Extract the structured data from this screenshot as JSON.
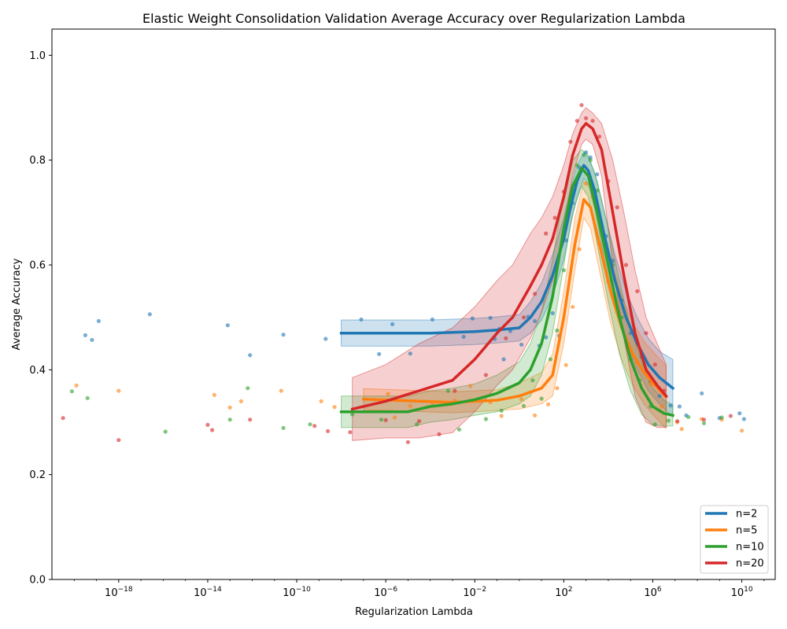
{
  "chart_data": {
    "type": "line",
    "title": "Elastic Weight Consolidation Validation Average Accuracy over Regularization Lambda",
    "xlabel": "Regularization Lambda",
    "ylabel": "Average Accuracy",
    "xscale": "log",
    "xlim_log10": [
      -21,
      11.5
    ],
    "ylim": [
      0.0,
      1.05
    ],
    "x_ticks": [
      {
        "exp": -18,
        "label": "10",
        "sup": "−18"
      },
      {
        "exp": -14,
        "label": "10",
        "sup": "−14"
      },
      {
        "exp": -10,
        "label": "10",
        "sup": "−10"
      },
      {
        "exp": -6,
        "label": "10",
        "sup": "−6"
      },
      {
        "exp": -2,
        "label": "10",
        "sup": "−2"
      },
      {
        "exp": 2,
        "label": "10",
        "sup": "2"
      },
      {
        "exp": 6,
        "label": "10",
        "sup": "6"
      },
      {
        "exp": 10,
        "label": "10",
        "sup": "10"
      }
    ],
    "y_ticks": [
      "0.0",
      "0.2",
      "0.4",
      "0.6",
      "0.8",
      "1.0"
    ],
    "legend_position": "bottom-right",
    "series": [
      {
        "name": "n=2",
        "color": "#1f77b4",
        "x_log10": [
          -8.0,
          -6.0,
          -4.0,
          -2.0,
          -1.0,
          0.0,
          0.5,
          1.0,
          1.5,
          2.0,
          2.3,
          2.6,
          2.9,
          3.1,
          3.4,
          3.8,
          4.3,
          4.8,
          5.3,
          5.8,
          6.3,
          6.9
        ],
        "mean": [
          0.47,
          0.47,
          0.47,
          0.473,
          0.476,
          0.48,
          0.5,
          0.53,
          0.58,
          0.65,
          0.71,
          0.76,
          0.79,
          0.78,
          0.74,
          0.66,
          0.57,
          0.5,
          0.45,
          0.41,
          0.385,
          0.365
        ],
        "halfwidth": [
          0.025,
          0.025,
          0.025,
          0.025,
          0.025,
          0.025,
          0.03,
          0.035,
          0.04,
          0.04,
          0.035,
          0.03,
          0.025,
          0.025,
          0.035,
          0.045,
          0.05,
          0.05,
          0.05,
          0.05,
          0.05,
          0.055
        ],
        "scatter": [
          [
            -19.5,
            0.466
          ],
          [
            -19.2,
            0.457
          ],
          [
            -18.9,
            0.493
          ],
          [
            -16.6,
            0.506
          ],
          [
            -13.1,
            0.485
          ],
          [
            -12.1,
            0.428
          ],
          [
            -10.6,
            0.467
          ],
          [
            -8.7,
            0.459
          ],
          [
            -7.1,
            0.496
          ],
          [
            -6.3,
            0.43
          ],
          [
            -5.7,
            0.487
          ],
          [
            -4.9,
            0.431
          ],
          [
            -3.9,
            0.496
          ],
          [
            -2.5,
            0.463
          ],
          [
            -2.1,
            0.498
          ],
          [
            -1.3,
            0.499
          ],
          [
            -1.1,
            0.459
          ],
          [
            -0.9,
            0.478
          ],
          [
            -0.7,
            0.42
          ],
          [
            -0.4,
            0.474
          ],
          [
            0.1,
            0.448
          ],
          [
            0.4,
            0.501
          ],
          [
            0.7,
            0.493
          ],
          [
            0.9,
            0.446
          ],
          [
            1.2,
            0.462
          ],
          [
            1.5,
            0.508
          ],
          [
            1.8,
            0.465
          ],
          [
            2.1,
            0.647
          ],
          [
            2.4,
            0.718
          ],
          [
            2.7,
            0.786
          ],
          [
            3.0,
            0.815
          ],
          [
            3.2,
            0.805
          ],
          [
            3.5,
            0.773
          ],
          [
            3.9,
            0.655
          ],
          [
            4.2,
            0.608
          ],
          [
            4.6,
            0.532
          ],
          [
            5.0,
            0.47
          ],
          [
            5.5,
            0.425
          ],
          [
            5.9,
            0.378
          ],
          [
            6.3,
            0.35
          ],
          [
            6.8,
            0.332
          ],
          [
            7.2,
            0.33
          ],
          [
            7.5,
            0.313
          ],
          [
            8.2,
            0.355
          ],
          [
            9.0,
            0.308
          ],
          [
            9.9,
            0.317
          ],
          [
            10.1,
            0.306
          ]
        ]
      },
      {
        "name": "n=5",
        "color": "#ff7f0e",
        "x_log10": [
          -7.0,
          -5.0,
          -3.0,
          -1.0,
          0.0,
          1.0,
          1.5,
          2.0,
          2.5,
          2.9,
          3.2,
          3.6,
          4.1,
          4.6,
          5.1,
          5.6,
          6.1,
          6.6
        ],
        "mean": [
          0.344,
          0.341,
          0.338,
          0.342,
          0.35,
          0.365,
          0.39,
          0.5,
          0.64,
          0.725,
          0.71,
          0.64,
          0.55,
          0.48,
          0.43,
          0.395,
          0.37,
          0.348
        ],
        "halfwidth": [
          0.02,
          0.02,
          0.02,
          0.02,
          0.025,
          0.03,
          0.04,
          0.05,
          0.05,
          0.035,
          0.04,
          0.05,
          0.06,
          0.06,
          0.06,
          0.06,
          0.06,
          0.06
        ],
        "scatter": [
          [
            -19.9,
            0.37
          ],
          [
            -18.0,
            0.36
          ],
          [
            -13.7,
            0.352
          ],
          [
            -13.0,
            0.328
          ],
          [
            -12.5,
            0.34
          ],
          [
            -10.7,
            0.36
          ],
          [
            -8.9,
            0.34
          ],
          [
            -8.3,
            0.329
          ],
          [
            -5.9,
            0.354
          ],
          [
            -5.6,
            0.309
          ],
          [
            -4.9,
            0.331
          ],
          [
            -3.9,
            0.337
          ],
          [
            -2.9,
            0.341
          ],
          [
            -2.2,
            0.369
          ],
          [
            -1.3,
            0.338
          ],
          [
            -0.8,
            0.312
          ],
          [
            0.1,
            0.344
          ],
          [
            0.7,
            0.313
          ],
          [
            1.3,
            0.334
          ],
          [
            1.7,
            0.365
          ],
          [
            2.1,
            0.409
          ],
          [
            2.4,
            0.52
          ],
          [
            2.7,
            0.63
          ],
          [
            3.0,
            0.755
          ],
          [
            3.3,
            0.73
          ],
          [
            3.6,
            0.64
          ],
          [
            4.0,
            0.568
          ],
          [
            4.4,
            0.51
          ],
          [
            4.8,
            0.455
          ],
          [
            5.3,
            0.414
          ],
          [
            5.9,
            0.373
          ],
          [
            6.4,
            0.33
          ],
          [
            7.1,
            0.3
          ],
          [
            7.3,
            0.287
          ],
          [
            8.2,
            0.306
          ],
          [
            9.1,
            0.305
          ],
          [
            10.0,
            0.284
          ]
        ]
      },
      {
        "name": "n=10",
        "color": "#2ca02c",
        "x_log10": [
          -8.0,
          -6.0,
          -5.0,
          -4.0,
          -3.0,
          -2.0,
          -1.0,
          0.0,
          0.5,
          1.0,
          1.5,
          2.0,
          2.4,
          2.8,
          3.1,
          3.5,
          4.0,
          4.5,
          5.0,
          5.5,
          6.0,
          6.5,
          6.9
        ],
        "mean": [
          0.32,
          0.32,
          0.32,
          0.33,
          0.335,
          0.343,
          0.355,
          0.375,
          0.4,
          0.45,
          0.54,
          0.67,
          0.75,
          0.785,
          0.77,
          0.7,
          0.6,
          0.5,
          0.42,
          0.365,
          0.33,
          0.317,
          0.313
        ],
        "halfwidth": [
          0.03,
          0.03,
          0.03,
          0.03,
          0.03,
          0.03,
          0.035,
          0.04,
          0.05,
          0.06,
          0.07,
          0.07,
          0.05,
          0.035,
          0.04,
          0.06,
          0.07,
          0.07,
          0.06,
          0.05,
          0.035,
          0.025,
          0.02
        ],
        "scatter": [
          [
            -20.1,
            0.359
          ],
          [
            -19.4,
            0.346
          ],
          [
            -15.9,
            0.282
          ],
          [
            -12.2,
            0.365
          ],
          [
            -13.0,
            0.305
          ],
          [
            -10.6,
            0.289
          ],
          [
            -9.4,
            0.296
          ],
          [
            -7.5,
            0.315
          ],
          [
            -6.2,
            0.305
          ],
          [
            -4.6,
            0.296
          ],
          [
            -3.2,
            0.36
          ],
          [
            -2.7,
            0.286
          ],
          [
            -1.5,
            0.306
          ],
          [
            -0.8,
            0.322
          ],
          [
            0.2,
            0.331
          ],
          [
            0.6,
            0.38
          ],
          [
            1.0,
            0.345
          ],
          [
            1.4,
            0.42
          ],
          [
            1.7,
            0.475
          ],
          [
            2.0,
            0.59
          ],
          [
            2.3,
            0.71
          ],
          [
            2.6,
            0.79
          ],
          [
            2.9,
            0.81
          ],
          [
            3.2,
            0.8
          ],
          [
            3.5,
            0.742
          ],
          [
            3.9,
            0.64
          ],
          [
            4.2,
            0.6
          ],
          [
            4.6,
            0.5
          ],
          [
            5.0,
            0.42
          ],
          [
            5.4,
            0.38
          ],
          [
            5.9,
            0.33
          ],
          [
            6.1,
            0.296
          ],
          [
            6.7,
            0.303
          ],
          [
            7.6,
            0.31
          ],
          [
            8.3,
            0.298
          ],
          [
            9.1,
            0.309
          ]
        ]
      },
      {
        "name": "n=20",
        "color": "#d62728",
        "x_log10": [
          -7.5,
          -6.0,
          -4.5,
          -3.0,
          -2.0,
          -1.0,
          -0.3,
          0.5,
          1.0,
          1.5,
          2.0,
          2.4,
          2.8,
          3.0,
          3.3,
          3.7,
          4.2,
          4.7,
          5.2,
          5.7,
          6.2,
          6.6
        ],
        "mean": [
          0.325,
          0.34,
          0.36,
          0.38,
          0.42,
          0.47,
          0.5,
          0.56,
          0.6,
          0.65,
          0.73,
          0.81,
          0.86,
          0.87,
          0.86,
          0.82,
          0.7,
          0.58,
          0.47,
          0.4,
          0.37,
          0.35
        ],
        "halfwidth": [
          0.06,
          0.07,
          0.09,
          0.1,
          0.1,
          0.1,
          0.1,
          0.1,
          0.09,
          0.08,
          0.06,
          0.04,
          0.03,
          0.03,
          0.03,
          0.05,
          0.1,
          0.12,
          0.12,
          0.1,
          0.08,
          0.06
        ],
        "scatter": [
          [
            -20.5,
            0.308
          ],
          [
            -18.0,
            0.266
          ],
          [
            -14.0,
            0.295
          ],
          [
            -13.8,
            0.285
          ],
          [
            -12.1,
            0.305
          ],
          [
            -9.2,
            0.293
          ],
          [
            -8.6,
            0.283
          ],
          [
            -7.6,
            0.281
          ],
          [
            -6.0,
            0.304
          ],
          [
            -5.0,
            0.262
          ],
          [
            -4.5,
            0.302
          ],
          [
            -3.6,
            0.277
          ],
          [
            -2.9,
            0.36
          ],
          [
            -1.5,
            0.39
          ],
          [
            -0.6,
            0.46
          ],
          [
            0.2,
            0.5
          ],
          [
            0.7,
            0.545
          ],
          [
            1.2,
            0.66
          ],
          [
            1.6,
            0.69
          ],
          [
            2.0,
            0.74
          ],
          [
            2.3,
            0.835
          ],
          [
            2.6,
            0.875
          ],
          [
            2.8,
            0.905
          ],
          [
            3.0,
            0.88
          ],
          [
            3.3,
            0.875
          ],
          [
            3.6,
            0.845
          ],
          [
            4.0,
            0.76
          ],
          [
            4.4,
            0.71
          ],
          [
            4.8,
            0.6
          ],
          [
            5.3,
            0.55
          ],
          [
            5.7,
            0.47
          ],
          [
            6.1,
            0.41
          ],
          [
            6.5,
            0.36
          ],
          [
            7.1,
            0.302
          ],
          [
            8.3,
            0.305
          ],
          [
            9.5,
            0.312
          ]
        ]
      }
    ]
  }
}
